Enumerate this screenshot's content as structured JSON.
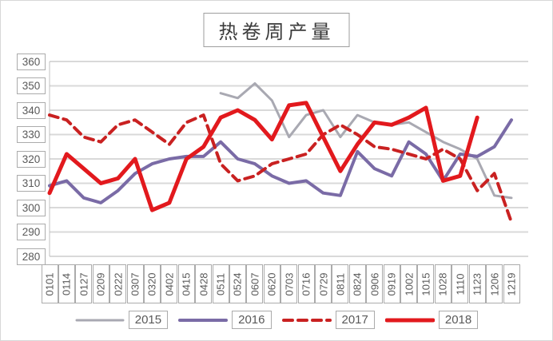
{
  "title": "热卷周产量",
  "chart_data": {
    "type": "line",
    "title": "热卷周产量",
    "xlabel": "",
    "ylabel": "",
    "ylim": [
      280,
      360
    ],
    "yticks": [
      360,
      350,
      340,
      330,
      320,
      310,
      300,
      290,
      280
    ],
    "grid": true,
    "legend_position": "bottom",
    "categories": [
      "0101",
      "0114",
      "0127",
      "0209",
      "0222",
      "0307",
      "0320",
      "0402",
      "0415",
      "0428",
      "0511",
      "0524",
      "0607",
      "0620",
      "0703",
      "0716",
      "0729",
      "0811",
      "0824",
      "0906",
      "0919",
      "1002",
      "1015",
      "1028",
      "1110",
      "1123",
      "1206",
      "1219"
    ],
    "series": [
      {
        "name": "2015",
        "color": "#a9a9b2",
        "dash": "solid",
        "width": 3,
        "values": [
          null,
          null,
          null,
          null,
          null,
          null,
          null,
          null,
          null,
          null,
          347,
          345,
          351,
          344,
          329,
          338,
          340,
          329,
          338,
          335,
          334,
          335,
          331,
          327,
          324,
          320,
          305,
          304
        ]
      },
      {
        "name": "2016",
        "color": "#7a6ba6",
        "dash": "solid",
        "width": 4,
        "values": [
          309,
          311,
          304,
          302,
          307,
          314,
          318,
          320,
          321,
          321,
          327,
          320,
          318,
          313,
          310,
          311,
          306,
          305,
          323,
          316,
          313,
          327,
          322,
          311,
          322,
          321,
          325,
          336
        ]
      },
      {
        "name": "2017",
        "color": "#c92121",
        "dash": "dashed",
        "width": 4,
        "values": [
          338,
          336,
          329,
          327,
          334,
          336,
          331,
          326,
          335,
          338,
          318,
          311,
          313,
          318,
          320,
          322,
          330,
          334,
          330,
          325,
          324,
          322,
          320,
          324,
          320,
          307,
          314,
          294
        ]
      },
      {
        "name": "2018",
        "color": "#e2191d",
        "dash": "solid",
        "width": 5,
        "values": [
          306,
          322,
          316,
          310,
          312,
          320,
          299,
          302,
          320,
          325,
          337,
          340,
          336,
          328,
          342,
          343,
          329,
          315,
          326,
          335,
          334,
          337,
          341,
          311,
          313,
          337,
          null,
          null
        ]
      }
    ]
  },
  "colors": {
    "gridline": "#d9d9d9",
    "axis": "#c0c0c0",
    "tick_text": "#595959",
    "box_border": "#ababab"
  }
}
